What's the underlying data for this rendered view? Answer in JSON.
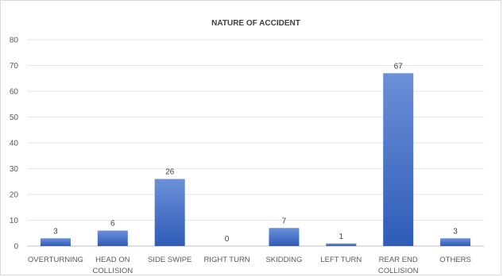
{
  "chart_data": {
    "type": "bar",
    "title": "NATURE OF ACCIDENT",
    "xlabel": "",
    "ylabel": "",
    "ylim": [
      0,
      80
    ],
    "yticks": [
      "0",
      "10",
      "20",
      "30",
      "40",
      "50",
      "60",
      "70",
      "80"
    ],
    "grid": true,
    "legend": "none",
    "bar_color": "#4472c4",
    "categories": [
      [
        "OVERTURNING"
      ],
      [
        "HEAD ON",
        "COLLISION"
      ],
      [
        "SIDE SWIPE"
      ],
      [
        "RIGHT TURN"
      ],
      [
        "SKIDDING"
      ],
      [
        "LEFT TURN"
      ],
      [
        "REAR END",
        "COLLISION"
      ],
      [
        "OTHERS"
      ]
    ],
    "values": [
      3,
      6,
      26,
      0,
      7,
      1,
      67,
      3
    ]
  }
}
